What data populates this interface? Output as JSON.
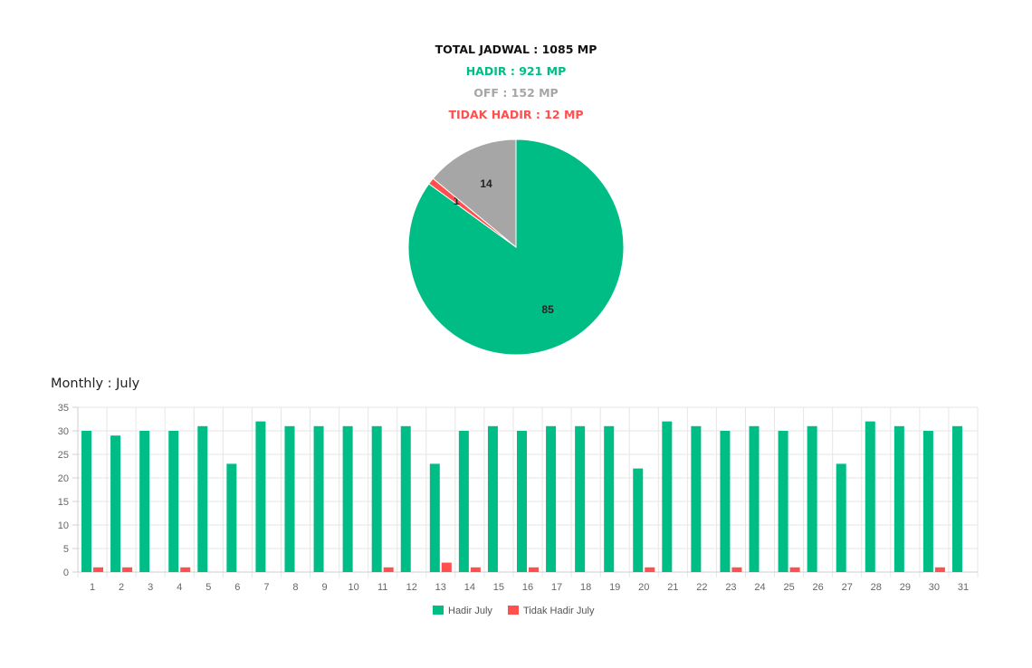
{
  "summary": {
    "total": "TOTAL JADWAL : 1085 MP",
    "hadir": "HADIR : 921 MP",
    "off": "OFF : 152 MP",
    "tidak_hadir": "TIDAK HADIR : 12 MP"
  },
  "colors": {
    "hadir": "#00bd86",
    "off": "#a6a6a6",
    "tidak_hadir": "#ff4f4f",
    "total": "#111111",
    "grid": "#e6e6e6"
  },
  "monthly_title": "Monthly : July",
  "chart_data": [
    {
      "type": "pie",
      "labels": [
        "",
        "",
        ""
      ],
      "slices": [
        {
          "key": "hadir",
          "value": 85,
          "label": "85"
        },
        {
          "key": "tidak_hadir",
          "value": 1,
          "label": "1"
        },
        {
          "key": "off",
          "value": 14,
          "label": "14"
        }
      ]
    },
    {
      "type": "bar",
      "title": "",
      "categories": [
        "1",
        "2",
        "3",
        "4",
        "5",
        "6",
        "7",
        "8",
        "9",
        "10",
        "11",
        "12",
        "13",
        "14",
        "15",
        "16",
        "17",
        "18",
        "19",
        "20",
        "21",
        "22",
        "23",
        "24",
        "25",
        "26",
        "27",
        "28",
        "29",
        "30",
        "31"
      ],
      "series": [
        {
          "name": "Hadir July",
          "values": [
            30,
            29,
            30,
            30,
            31,
            23,
            32,
            31,
            31,
            31,
            31,
            31,
            23,
            30,
            31,
            30,
            31,
            31,
            31,
            22,
            32,
            31,
            30,
            31,
            30,
            31,
            23,
            32,
            31,
            30,
            31
          ]
        },
        {
          "name": "Tidak Hadir July",
          "values": [
            1,
            1,
            0,
            1,
            0,
            0,
            0,
            0,
            0,
            0,
            1,
            0,
            2,
            1,
            0,
            1,
            0,
            0,
            0,
            1,
            0,
            0,
            1,
            0,
            1,
            0,
            0,
            0,
            0,
            1,
            0
          ]
        }
      ],
      "ylim": [
        0,
        35
      ],
      "yticks": [
        "0",
        "5",
        "10",
        "15",
        "20",
        "25",
        "30",
        "35"
      ],
      "grid": true,
      "legend": "bottom"
    }
  ]
}
